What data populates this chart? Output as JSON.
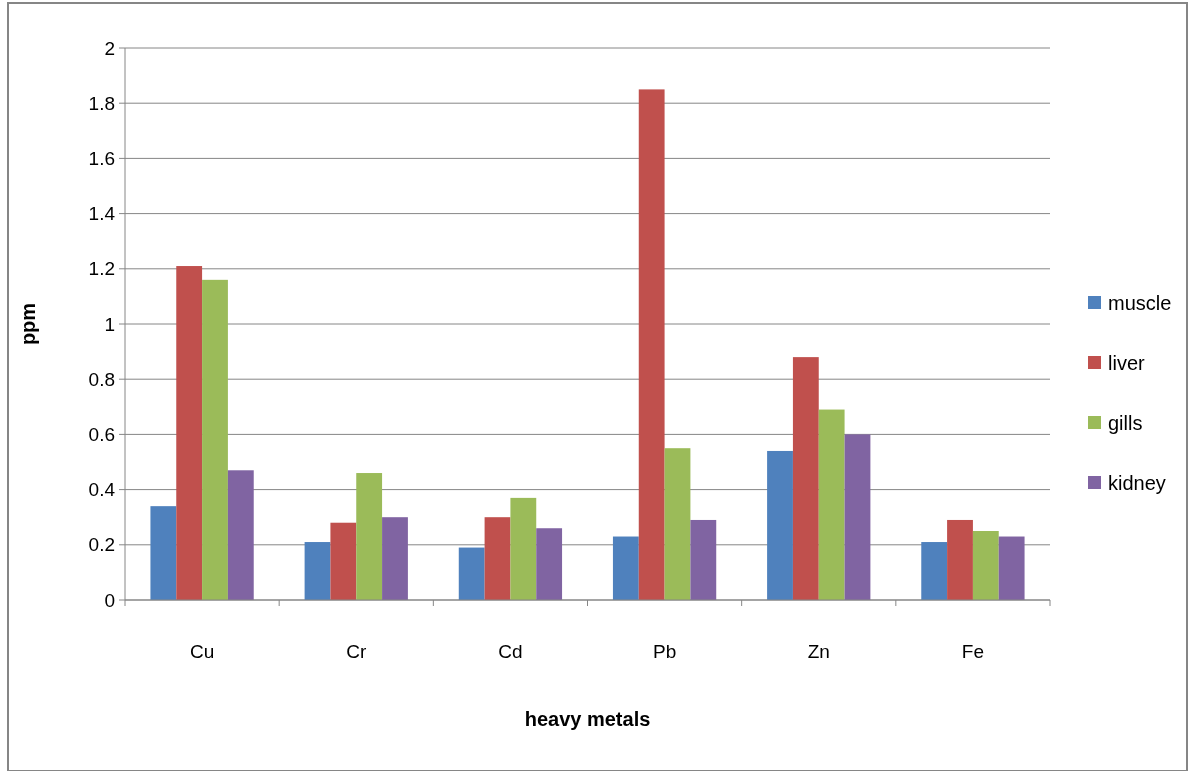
{
  "chart_data": {
    "type": "bar",
    "xlabel": "heavy metals",
    "ylabel": "ppm",
    "categories": [
      "Cu",
      "Cr",
      "Cd",
      "Pb",
      "Zn",
      "Fe"
    ],
    "series": [
      {
        "name": "muscle",
        "color": "#4f81bd",
        "values": [
          0.34,
          0.21,
          0.19,
          0.23,
          0.54,
          0.21
        ]
      },
      {
        "name": "liver",
        "color": "#c0504d",
        "values": [
          1.21,
          0.28,
          0.3,
          1.85,
          0.88,
          0.29
        ]
      },
      {
        "name": "gills",
        "color": "#9bbb59",
        "values": [
          1.16,
          0.46,
          0.37,
          0.55,
          0.69,
          0.25
        ]
      },
      {
        "name": "kidney",
        "color": "#8064a2",
        "values": [
          0.47,
          0.3,
          0.26,
          0.29,
          0.6,
          0.23
        ]
      }
    ],
    "ylim": [
      0,
      2
    ],
    "yticks": [
      0,
      0.2,
      0.4,
      0.6,
      0.8,
      1,
      1.2,
      1.4,
      1.6,
      1.8,
      2
    ],
    "grid": "y",
    "legend": "right"
  }
}
